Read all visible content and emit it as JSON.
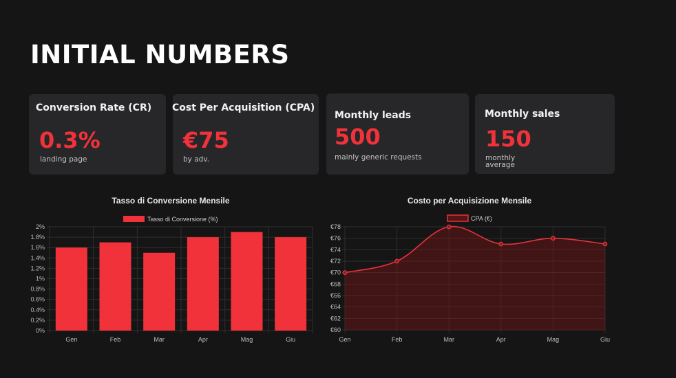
{
  "page": {
    "title": "INITIAL NUMBERS"
  },
  "cards": [
    {
      "title": "Conversion Rate (CR)",
      "value": "0.3%",
      "subtitle": "landing page"
    },
    {
      "title": "Cost Per Acquisition (CPA)",
      "value": "€75",
      "subtitle": "by adv."
    },
    {
      "title": "Monthly leads",
      "value": "500",
      "subtitle": "mainly generic requests"
    },
    {
      "title": "Monthly sales",
      "value": "150",
      "subtitle_lines": [
        "monthly",
        "average"
      ]
    }
  ],
  "colors": {
    "accent": "#f2323a",
    "card_bg": "#272729",
    "page_bg": "#151515",
    "grid": "#2e2e2e"
  },
  "chart_data": [
    {
      "type": "bar",
      "title": "Tasso di Conversione Mensile",
      "categories": [
        "Gen",
        "Feb",
        "Mar",
        "Apr",
        "Mag",
        "Giu"
      ],
      "series": [
        {
          "name": "Tasso di Conversione (%)",
          "values": [
            1.6,
            1.7,
            1.5,
            1.8,
            1.9,
            1.8
          ]
        }
      ],
      "y_ticks": [
        "0%",
        "0.2%",
        "0.4%",
        "0.6%",
        "0.8%",
        "1%",
        "1.2%",
        "1.4%",
        "1.6%",
        "1.8%",
        "2%"
      ],
      "ylim": [
        0,
        2
      ],
      "grid": true,
      "legend": "top"
    },
    {
      "type": "area",
      "title": "Costo per Acquisizione Mensile",
      "categories": [
        "Gen",
        "Feb",
        "Mar",
        "Apr",
        "Mag",
        "Giu"
      ],
      "series": [
        {
          "name": "CPA (€)",
          "values": [
            70,
            72,
            78,
            75,
            76,
            75
          ]
        }
      ],
      "y_ticks": [
        "€60",
        "€62",
        "€64",
        "€66",
        "€68",
        "€70",
        "€72",
        "€74",
        "€76",
        "€78"
      ],
      "ylim": [
        60,
        78
      ],
      "grid": true,
      "legend": "top"
    }
  ]
}
